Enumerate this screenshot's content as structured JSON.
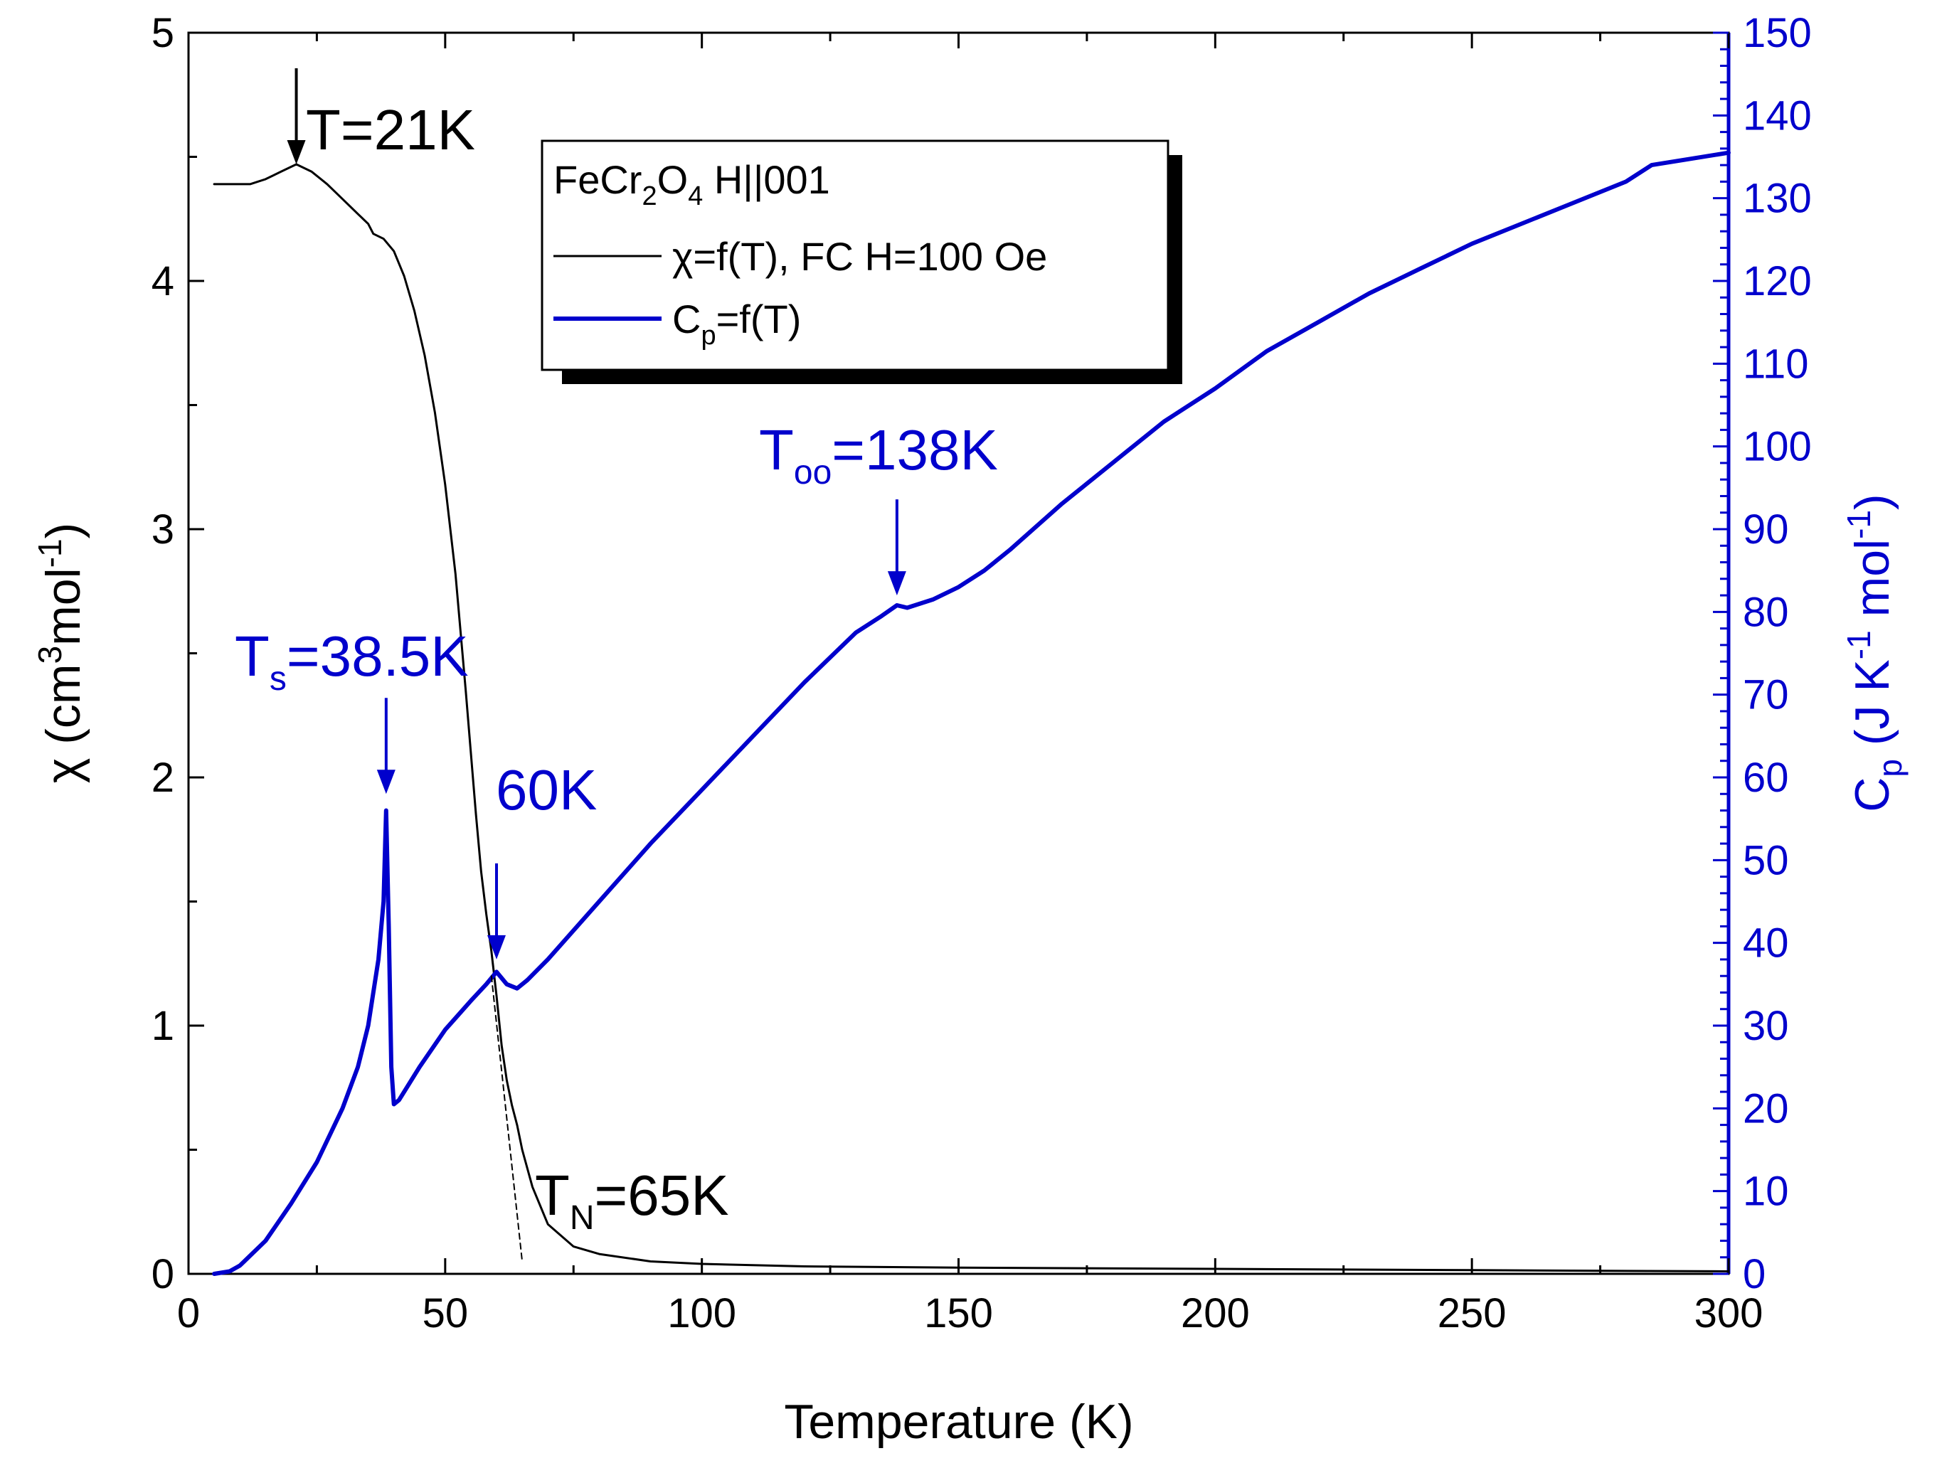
{
  "chart_data": {
    "type": "line",
    "title": "",
    "xlabel": "Temperature (K)",
    "ylabel": "χ (cm³mol⁻¹)",
    "ylabel_parts": [
      "χ (cm",
      "3",
      "mol",
      "-1",
      ")"
    ],
    "y2label": "Cp (J K⁻¹ mol⁻¹)",
    "y2label_parts": [
      "C",
      "p",
      " (J K",
      "-1",
      " mol",
      "-1",
      ")"
    ],
    "xlim": [
      0,
      300
    ],
    "ylim": [
      0,
      5
    ],
    "y2lim": [
      0,
      150
    ],
    "x_ticks": [
      "0",
      "50",
      "100",
      "150",
      "200",
      "250",
      "300"
    ],
    "y_ticks": [
      "0",
      "1",
      "2",
      "3",
      "4",
      "5"
    ],
    "y2_ticks": [
      "0",
      "10",
      "20",
      "30",
      "40",
      "50",
      "60",
      "70",
      "80",
      "90",
      "100",
      "110",
      "120",
      "130",
      "140",
      "150"
    ],
    "colors": {
      "chi": "#000000",
      "cp": "#0000cc",
      "axis_right": "#0000cc"
    },
    "legend": {
      "title_parts": [
        "FeCr",
        "2",
        "O",
        "4",
        " H||001"
      ],
      "entries": [
        {
          "label_parts": [
            "χ=f(T), FC H=100 Oe"
          ],
          "color": "#000000"
        },
        {
          "label_parts": [
            "C",
            "p",
            "=f(T)"
          ],
          "color": "#0000cc"
        }
      ],
      "position": "upper-center"
    },
    "series": [
      {
        "name": "χ=f(T), FC H=100 Oe",
        "axis": "left",
        "x": [
          5,
          8,
          12,
          15,
          18,
          21,
          24,
          27,
          30,
          33,
          35,
          36,
          37,
          38,
          40,
          42,
          44,
          46,
          48,
          50,
          52,
          54,
          55,
          56,
          57,
          58,
          59,
          60,
          61,
          62,
          63,
          64,
          65,
          67,
          70,
          75,
          80,
          90,
          100,
          120,
          150,
          200,
          250,
          300
        ],
        "y": [
          4.39,
          4.39,
          4.39,
          4.41,
          4.44,
          4.47,
          4.44,
          4.39,
          4.33,
          4.27,
          4.23,
          4.19,
          4.18,
          4.17,
          4.12,
          4.02,
          3.88,
          3.7,
          3.47,
          3.18,
          2.82,
          2.35,
          2.1,
          1.85,
          1.62,
          1.45,
          1.3,
          1.12,
          0.92,
          0.78,
          0.68,
          0.6,
          0.5,
          0.35,
          0.2,
          0.11,
          0.08,
          0.05,
          0.04,
          0.03,
          0.025,
          0.02,
          0.015,
          0.01
        ]
      },
      {
        "name": "Cp=f(T)",
        "axis": "right",
        "x": [
          5,
          8,
          10,
          15,
          20,
          25,
          30,
          33,
          35,
          37,
          38,
          38.5,
          39,
          39.5,
          40,
          41,
          45,
          50,
          55,
          58,
          60,
          62,
          64,
          66,
          70,
          80,
          90,
          100,
          110,
          120,
          130,
          135,
          138,
          140,
          145,
          150,
          155,
          160,
          170,
          180,
          190,
          200,
          210,
          220,
          230,
          240,
          250,
          260,
          270,
          280,
          285,
          290,
          300
        ],
        "y": [
          0,
          0.3,
          1,
          4,
          8.5,
          13.5,
          20,
          25,
          30,
          38,
          45,
          56,
          42,
          25,
          20.5,
          21,
          25,
          29.5,
          33,
          35,
          36.5,
          35,
          34.5,
          35.5,
          38,
          45,
          52,
          58.5,
          65,
          71.5,
          77.5,
          79.5,
          80.8,
          80.5,
          81.5,
          83,
          85,
          87.5,
          93,
          98,
          103,
          107,
          111.5,
          115,
          118.5,
          121.5,
          124.5,
          127,
          129.5,
          132,
          134,
          134.5,
          135.5
        ]
      },
      {
        "name": "extrapolation",
        "axis": "left",
        "style": "dashed",
        "x": [
          59,
          65
        ],
        "y": [
          1.2,
          0.05
        ]
      }
    ],
    "annotations": [
      {
        "parts": [
          "T=21K"
        ],
        "color": "#000000",
        "arrow_target": {
          "x": 21,
          "y": 4.47,
          "axis": "left"
        }
      },
      {
        "parts": [
          "T",
          "s",
          "=38.5K"
        ],
        "color": "#0000cc",
        "arrow_target": {
          "x": 38.5,
          "y": 58,
          "axis": "right"
        }
      },
      {
        "parts": [
          "60K"
        ],
        "color": "#0000cc",
        "arrow_target": {
          "x": 60,
          "y": 38,
          "axis": "right"
        }
      },
      {
        "parts": [
          "T",
          "oo",
          "=138K"
        ],
        "color": "#0000cc",
        "arrow_target": {
          "x": 138,
          "y": 82,
          "axis": "right"
        }
      },
      {
        "parts": [
          "T",
          "N",
          "=65K"
        ],
        "color": "#000000",
        "arrow_target": null
      }
    ]
  }
}
